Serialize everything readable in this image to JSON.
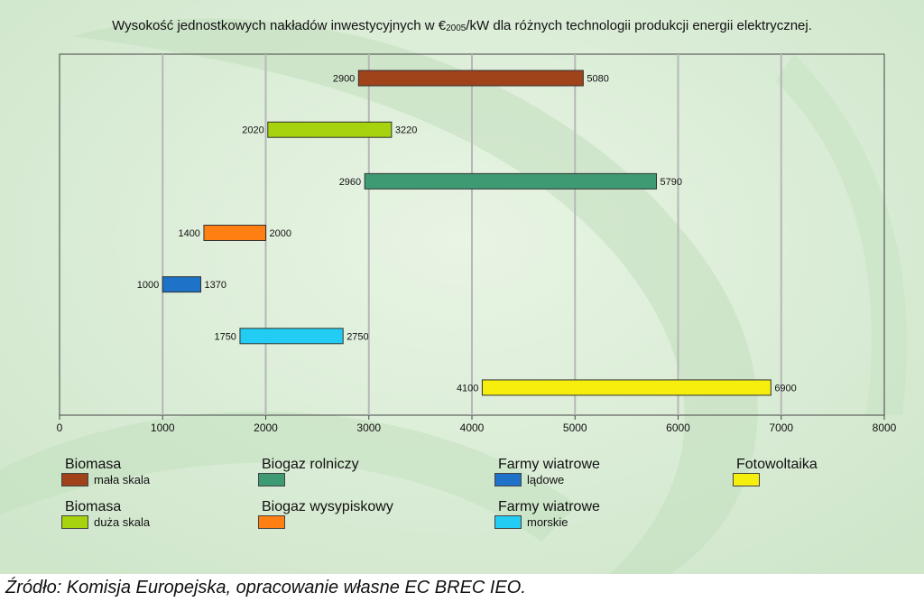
{
  "title_main": "Wysokość jednostkowych nakładów inwestycyjnych w €",
  "title_sub": "2005",
  "title_tail": "/kW dla różnych technologii produkcji energii elektrycznej.",
  "source": "Źródło: Komisja Europejska, opracowanie  własne EC BREC IEO.",
  "chart_data": {
    "type": "bar",
    "orientation": "horizontal-range",
    "xlim": [
      0,
      8000
    ],
    "x_ticks": [
      "0",
      "1000",
      "2000",
      "3000",
      "4000",
      "5000",
      "6000",
      "7000",
      "8000"
    ],
    "grid": true,
    "bars": [
      {
        "min": 2900,
        "max": 5080,
        "min_label": "2900",
        "max_label": "5080",
        "color": "#a0421a"
      },
      {
        "min": 2020,
        "max": 3220,
        "min_label": "2020",
        "max_label": "3220",
        "color": "#a6d20e"
      },
      {
        "min": 2960,
        "max": 5790,
        "min_label": "2960",
        "max_label": "5790",
        "color": "#3d9a73"
      },
      {
        "min": 1400,
        "max": 2000,
        "min_label": "1400",
        "max_label": "2000",
        "color": "#ff7f12"
      },
      {
        "min": 1000,
        "max": 1370,
        "min_label": "1000",
        "max_label": "1370",
        "color": "#1e72c8"
      },
      {
        "min": 1750,
        "max": 2750,
        "min_label": "1750",
        "max_label": "2750",
        "color": "#22ccf2"
      },
      {
        "min": 4100,
        "max": 6900,
        "min_label": "4100",
        "max_label": "6900",
        "color": "#f6ee0c"
      }
    ]
  },
  "legend": [
    {
      "title": "Biomasa",
      "sub": "mała skala",
      "color": "#a0421a"
    },
    {
      "title": "Biomasa",
      "sub": "duża skala",
      "color": "#a6d20e"
    },
    {
      "title": "Biogaz rolniczy",
      "sub": "",
      "color": "#3d9a73"
    },
    {
      "title": "Biogaz wysypiskowy",
      "sub": "",
      "color": "#ff7f12"
    },
    {
      "title": "Farmy wiatrowe",
      "sub": "lądowe",
      "color": "#1e72c8"
    },
    {
      "title": "Farmy wiatrowe",
      "sub": "morskie",
      "color": "#22ccf2"
    },
    {
      "title": "Fotowoltaika",
      "sub": "",
      "color": "#f6ee0c"
    }
  ]
}
